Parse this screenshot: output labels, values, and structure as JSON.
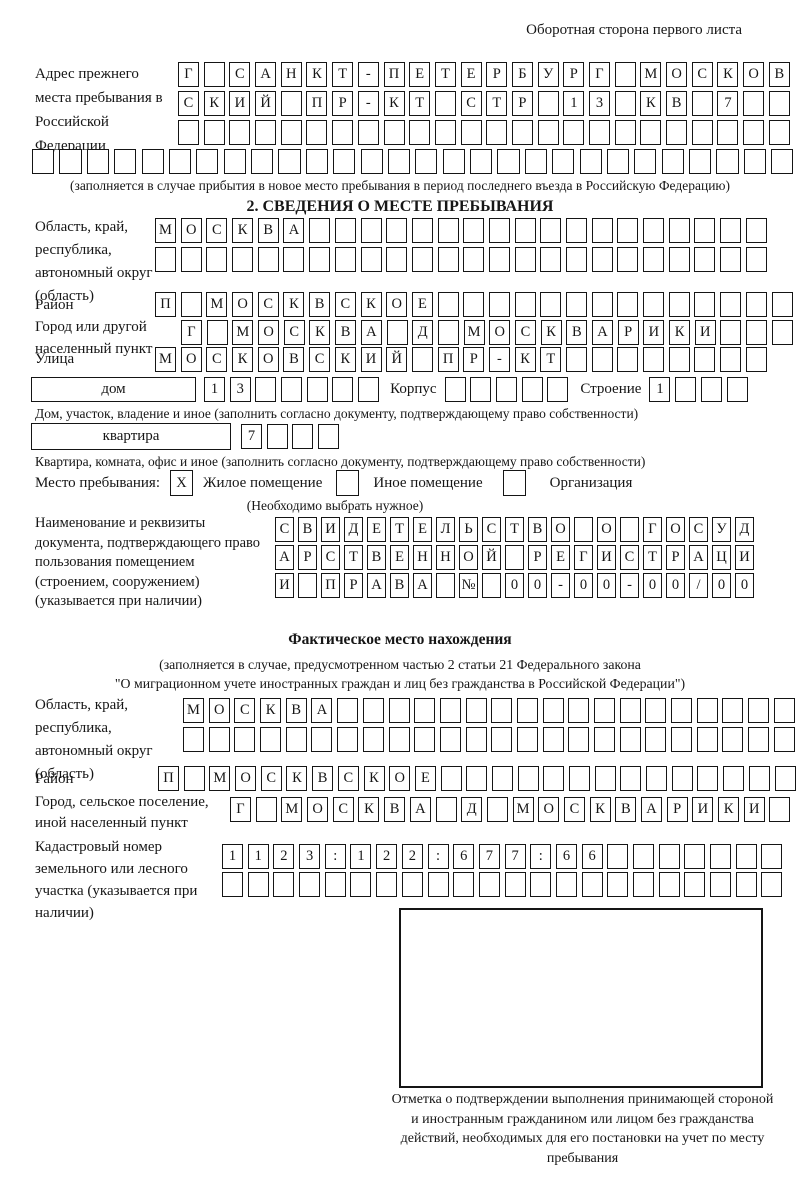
{
  "header": {
    "note": "Оборотная сторона первого листа"
  },
  "prev": {
    "label": "Адрес прежнего места пребывания в Российской Федерации",
    "rows": [
      {
        "chars": "Г САНКТ-ПЕТЕРБУРГ МОСКОВ",
        "total": 24
      },
      {
        "chars": "СКИЙ ПР-КТ СТР 13 КВ 7",
        "total": 24
      },
      {
        "chars": "",
        "total": 24
      },
      {
        "chars": "",
        "total": 28
      }
    ],
    "note": "(заполняется в случае прибытия в новое место пребывания в период последнего въезда в Российскую Федерацию)"
  },
  "sec2": {
    "title": "2. СВЕДЕНИЯ О МЕСТЕ ПРЕБЫВАНИЯ",
    "oblast": {
      "label": "Область, край, республика, автономный округ (область)",
      "rows": [
        {
          "chars": "МОСКВА",
          "total": 24
        },
        {
          "chars": "",
          "total": 24
        }
      ]
    },
    "raion": {
      "label": "Район",
      "row": {
        "chars": "П МОСКВСКОЕ",
        "total": 25
      }
    },
    "gorod": {
      "label": "Город или другой населенный пункт",
      "row": {
        "chars": "Г МОСКВА Д МОСКВАРИКИ",
        "total": 24
      }
    },
    "ulitsa": {
      "label": "Улица",
      "row": {
        "chars": "МОСКОВСКИЙ ПР-КТ",
        "total": 24
      }
    },
    "dom": {
      "box_label": "дом",
      "row": {
        "chars": "13",
        "total": 7
      },
      "korpus_label": "Корпус",
      "korpus_row": {
        "chars": "",
        "total": 5
      },
      "stroenie_label": "Строение",
      "stroenie_row": {
        "chars": "1",
        "total": 4
      },
      "note": "Дом, участок, владение и иное (заполнить согласно документу, подтверждающему право собственности)"
    },
    "kvartira": {
      "box_label": "квартира",
      "row": {
        "chars": "7",
        "total": 4
      },
      "note": "Квартира, комната, офис и иное (заполнить согласно документу, подтверждающему право собственности)"
    },
    "mesto": {
      "label": "Место пребывания:",
      "options": [
        {
          "mark": "X",
          "label": "Жилое помещение"
        },
        {
          "mark": "",
          "label": "Иное помещение"
        },
        {
          "mark": "",
          "label": "Организация"
        }
      ],
      "note": "(Необходимо выбрать нужное)"
    },
    "doc": {
      "label": "Наименование и реквизиты документа, подтверждающего право пользования помещением (строением, сооружением) (указывается при наличии)",
      "rows": [
        {
          "chars": "СВИДЕТЕЛЬСТВО О ГОСУД",
          "total": 21
        },
        {
          "chars": "АРСТВЕННОЙ РЕГИСТРАЦИ",
          "total": 21
        },
        {
          "chars": "И ПРАВА № 00-00-00/000",
          "total": 21
        }
      ]
    }
  },
  "fact": {
    "title": "Фактическое место нахождения",
    "note1": "(заполняется в случае, предусмотренном частью 2 статьи 21 Федерального закона",
    "note2": "\"О миграционном учете иностранных граждан и лиц без гражданства в Российской Федерации\")",
    "oblast": {
      "label": "Область, край, республика, автономный округ (область)",
      "rows": [
        {
          "chars": "МОСКВА",
          "total": 24
        },
        {
          "chars": "",
          "total": 24
        }
      ]
    },
    "raion": {
      "label": "Район",
      "row": {
        "chars": "П МОСКВСКОЕ",
        "total": 25
      }
    },
    "gorod": {
      "label": "Город, сельское поселение, иной населенный пункт",
      "row": {
        "chars": "Г МОСКВА Д МОСКВАРИКИ",
        "total": 22
      }
    },
    "kadastr": {
      "label": "Кадастровый номер земельного или лесного участка (указывается при наличии)",
      "rows": [
        {
          "chars": "1123:122:677:66",
          "total": 22
        },
        {
          "chars": "",
          "total": 22
        }
      ]
    },
    "stamp": {
      "note": "Отметка о подтверждении выполнения принимающей стороной и иностранным гражданином или лицом без гражданства действий, необходимых для его постановки на учет по месту пребывания"
    }
  }
}
